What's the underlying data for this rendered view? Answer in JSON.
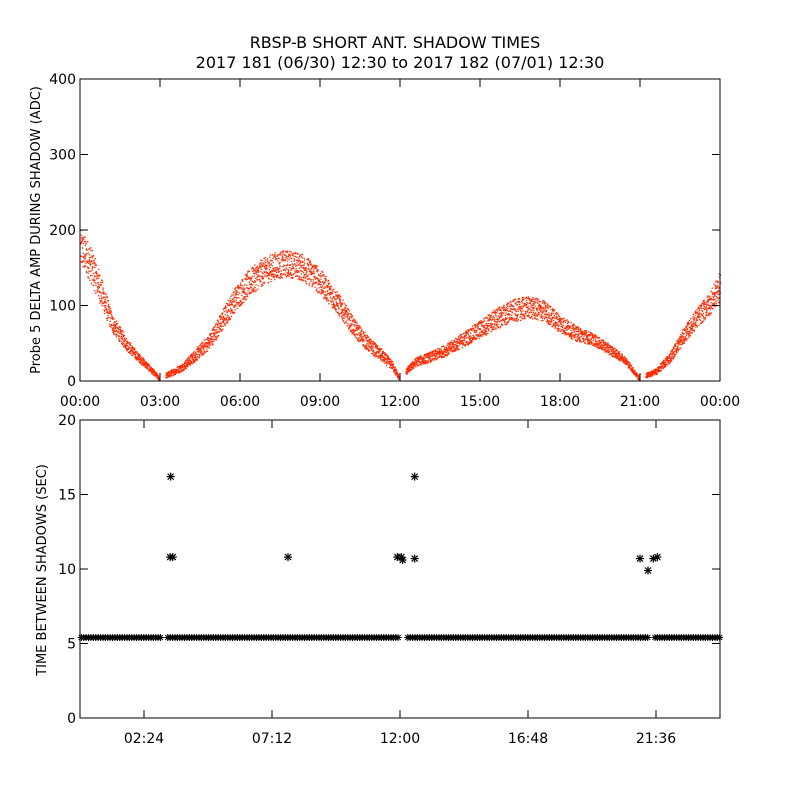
{
  "title": "RBSP-B SHORT ANT. SHADOW TIMES",
  "subtitle": "2017 181 (06/30) 12:30 to 2017 182 (07/01) 12:30",
  "colors": {
    "amplitude": "#ff2a00",
    "interval": "#000000",
    "axis": "#000000",
    "background": "#ffffff"
  },
  "chart_data": [
    {
      "type": "scatter",
      "ylabel": "Probe 5 DELTA AMP DURING SHADOW (ADC)",
      "xlabel": "",
      "x_unit": "hours",
      "xlim": [
        0,
        24
      ],
      "ylim": [
        0,
        400
      ],
      "xticks": [
        0,
        3,
        6,
        9,
        12,
        15,
        18,
        21,
        24
      ],
      "xtick_labels": [
        "00:00",
        "03:00",
        "06:00",
        "09:00",
        "12:00",
        "15:00",
        "18:00",
        "21:00",
        "00:00"
      ],
      "yticks": [
        0,
        100,
        200,
        300,
        400
      ],
      "ytick_labels": [
        "0",
        "100",
        "200",
        "300",
        "400"
      ],
      "grid": false,
      "series": [
        {
          "marker": "dot",
          "envelope_x": [
            0.0,
            0.3,
            0.6,
            0.9,
            1.2,
            1.5,
            1.8,
            2.1,
            2.4,
            2.7,
            2.95,
            3.3,
            3.8,
            4.3,
            4.8,
            5.3,
            5.8,
            6.3,
            6.8,
            7.3,
            7.8,
            8.3,
            8.8,
            9.3,
            9.8,
            10.3,
            10.8,
            11.3,
            11.7,
            11.95,
            12.6,
            13.2,
            13.8,
            14.4,
            15.0,
            15.6,
            16.2,
            16.8,
            17.4,
            18.0,
            18.6,
            19.2,
            19.8,
            20.4,
            20.95,
            21.6,
            22.1,
            22.6,
            23.1,
            23.6,
            24.0
          ],
          "envelope_y": [
            175,
            160,
            135,
            105,
            75,
            60,
            45,
            33,
            23,
            12,
            3,
            8,
            17,
            33,
            50,
            78,
            108,
            128,
            143,
            152,
            155,
            150,
            138,
            118,
            95,
            68,
            48,
            33,
            20,
            3,
            25,
            32,
            42,
            55,
            68,
            82,
            92,
            97,
            92,
            75,
            62,
            55,
            42,
            28,
            3,
            12,
            30,
            58,
            82,
            102,
            125
          ],
          "spread": [
            25,
            25,
            22,
            18,
            12,
            10,
            8,
            6,
            5,
            4,
            3,
            4,
            5,
            8,
            10,
            14,
            16,
            18,
            18,
            18,
            18,
            18,
            18,
            16,
            14,
            12,
            10,
            8,
            6,
            3,
            6,
            7,
            8,
            10,
            12,
            14,
            15,
            15,
            14,
            12,
            10,
            8,
            7,
            5,
            3,
            4,
            7,
            10,
            13,
            15,
            20
          ],
          "gaps_hours": [
            [
              2.95,
              3.2
            ],
            [
              11.95,
              12.2
            ],
            [
              20.95,
              21.2
            ]
          ]
        }
      ]
    },
    {
      "type": "scatter",
      "ylabel": "TIME BETWEEN SHADOWS (SEC)",
      "xlabel": "",
      "x_unit": "hours",
      "xlim": [
        0,
        24
      ],
      "ylim": [
        0,
        20
      ],
      "xticks": [
        2.4,
        7.2,
        12.0,
        16.8,
        21.6
      ],
      "xtick_labels": [
        "02:24",
        "07:12",
        "12:00",
        "16:48",
        "21:36"
      ],
      "yticks": [
        0,
        5,
        10,
        15,
        20
      ],
      "ytick_labels": [
        "0",
        "5",
        "10",
        "15",
        "20"
      ],
      "grid": false,
      "series": [
        {
          "marker": "asterisk",
          "baseline_value": 5.4,
          "baseline_gaps_hours": [
            [
              3.1,
              3.25
            ],
            [
              12.0,
              12.2
            ],
            [
              21.35,
              21.55
            ]
          ],
          "points": [
            {
              "x": 3.4,
              "y": 16.2
            },
            {
              "x": 3.38,
              "y": 10.8
            },
            {
              "x": 3.48,
              "y": 10.8
            },
            {
              "x": 7.8,
              "y": 10.8
            },
            {
              "x": 11.9,
              "y": 10.8
            },
            {
              "x": 12.05,
              "y": 10.8
            },
            {
              "x": 12.1,
              "y": 10.6
            },
            {
              "x": 12.55,
              "y": 16.2
            },
            {
              "x": 12.55,
              "y": 10.7
            },
            {
              "x": 21.0,
              "y": 10.7
            },
            {
              "x": 21.3,
              "y": 9.9
            },
            {
              "x": 21.5,
              "y": 10.7
            },
            {
              "x": 21.65,
              "y": 10.8
            }
          ]
        }
      ]
    }
  ]
}
